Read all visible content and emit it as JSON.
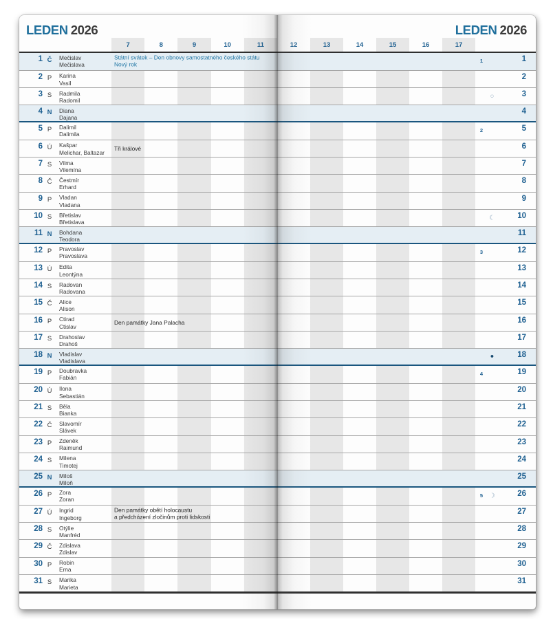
{
  "page": {
    "month": "LEDEN",
    "year": "2026"
  },
  "hours": {
    "left": [
      "7",
      "8",
      "9",
      "10",
      "11"
    ],
    "right": [
      "12",
      "13",
      "14",
      "15",
      "16",
      "17"
    ]
  },
  "colors": {
    "accent_blue": "#1d5f90",
    "title_blue": "#1f6f9c",
    "holiday_note_blue": "#2277a5",
    "highlight_row_bg": "#e5eef4",
    "sunday_border": "#1a567f",
    "column_stripe": "#e7e7e7",
    "row_line": "#a6a6a6",
    "frame_line": "#2e2e2e",
    "text_dark": "#3a3a3a",
    "moon_light": "#8fa9bf",
    "moon_dark": "#16496f"
  },
  "days": [
    {
      "n": "1",
      "wd": "Č",
      "name1": "Mečislav",
      "name2": "Mečislava",
      "note1": "Státní svátek – Den obnovy samostatného českého státu",
      "note2": "Nový rok",
      "note_blue": true,
      "hl": true,
      "week": "1"
    },
    {
      "n": "2",
      "wd": "P",
      "name1": "Karina",
      "name2": "Vasil"
    },
    {
      "n": "3",
      "wd": "S",
      "name1": "Radmila",
      "name2": "Radomil",
      "moon": "○"
    },
    {
      "n": "4",
      "wd": "N",
      "name1": "Diana",
      "name2": "Dajana",
      "hl": true
    },
    {
      "n": "5",
      "wd": "P",
      "name1": "Dalimil",
      "name2": "Dalimila",
      "week": "2"
    },
    {
      "n": "6",
      "wd": "Ú",
      "name1": "Kašpar",
      "name2": "Melichar, Baltazar",
      "note1": "Tři králové"
    },
    {
      "n": "7",
      "wd": "S",
      "name1": "Vilma",
      "name2": "Vilemína"
    },
    {
      "n": "8",
      "wd": "Č",
      "name1": "Čestmír",
      "name2": "Erhard"
    },
    {
      "n": "9",
      "wd": "P",
      "name1": "Vladan",
      "name2": "Vladana"
    },
    {
      "n": "10",
      "wd": "S",
      "name1": "Břetislav",
      "name2": "Břetislava",
      "moon": "☾"
    },
    {
      "n": "11",
      "wd": "N",
      "name1": "Bohdana",
      "name2": "Teodora",
      "hl": true
    },
    {
      "n": "12",
      "wd": "P",
      "name1": "Pravoslav",
      "name2": "Pravoslava",
      "week": "3"
    },
    {
      "n": "13",
      "wd": "Ú",
      "name1": "Edita",
      "name2": "Leontýna"
    },
    {
      "n": "14",
      "wd": "S",
      "name1": "Radovan",
      "name2": "Radovana"
    },
    {
      "n": "15",
      "wd": "Č",
      "name1": "Alice",
      "name2": "Alison"
    },
    {
      "n": "16",
      "wd": "P",
      "name1": "Ctirad",
      "name2": "Ctislav",
      "note1": "Den památky Jana Palacha"
    },
    {
      "n": "17",
      "wd": "S",
      "name1": "Drahoslav",
      "name2": "Drahoš"
    },
    {
      "n": "18",
      "wd": "N",
      "name1": "Vladislav",
      "name2": "Vladislava",
      "hl": true,
      "moon": "●",
      "moon_filled": true
    },
    {
      "n": "19",
      "wd": "P",
      "name1": "Doubravka",
      "name2": "Fabián",
      "week": "4"
    },
    {
      "n": "20",
      "wd": "Ú",
      "name1": "Ilona",
      "name2": "Sebastián"
    },
    {
      "n": "21",
      "wd": "S",
      "name1": "Běla",
      "name2": "Bianka"
    },
    {
      "n": "22",
      "wd": "Č",
      "name1": "Slavomír",
      "name2": "Slávek"
    },
    {
      "n": "23",
      "wd": "P",
      "name1": "Zdeněk",
      "name2": "Raimund"
    },
    {
      "n": "24",
      "wd": "S",
      "name1": "Milena",
      "name2": "Timotej"
    },
    {
      "n": "25",
      "wd": "N",
      "name1": "Miloš",
      "name2": "Miloň",
      "hl": true
    },
    {
      "n": "26",
      "wd": "P",
      "name1": "Zora",
      "name2": "Zoran",
      "week": "5",
      "moon": "☽"
    },
    {
      "n": "27",
      "wd": "Ú",
      "name1": "Ingrid",
      "name2": "Ingeborg",
      "note1": "Den památky obětí holocaustu",
      "note2": "a předcházení zločinům proti lidskosti"
    },
    {
      "n": "28",
      "wd": "S",
      "name1": "Otýlie",
      "name2": "Manfréd"
    },
    {
      "n": "29",
      "wd": "Č",
      "name1": "Zdislava",
      "name2": "Zdislav"
    },
    {
      "n": "30",
      "wd": "P",
      "name1": "Robin",
      "name2": "Erna"
    },
    {
      "n": "31",
      "wd": "S",
      "name1": "Marika",
      "name2": "Marieta"
    }
  ]
}
